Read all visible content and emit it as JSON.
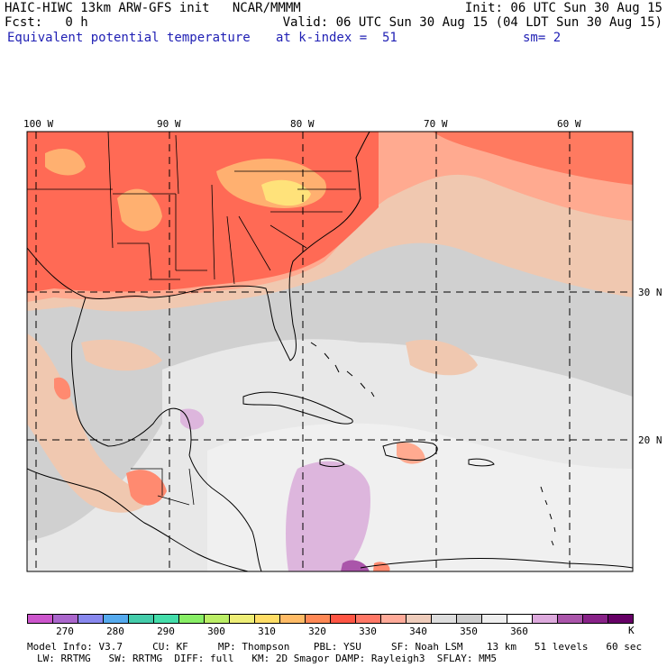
{
  "header": {
    "model_title": "HAIC-HIWC 13km ARW-GFS init   NCAR/MMMM",
    "init": "Init: 06 UTC Sun 30 Aug 15",
    "fcst": "Fcst:   0 h",
    "valid": "Valid: 06 UTC Sun 30 Aug 15 (04 LDT Sun 30 Aug 15)",
    "field_name": "Equivalent potential temperature",
    "level": "at k-index =  51",
    "smoothing": "sm= 2"
  },
  "map": {
    "lon_labels": [
      "100 W",
      "90 W",
      "80 W",
      "70 W",
      "60 W"
    ],
    "lat_labels": [
      "30 N",
      "20 N"
    ]
  },
  "colorbar": {
    "colors": [
      "#cc55cc",
      "#aa66cc",
      "#8888ee",
      "#55aaee",
      "#44ccaa",
      "#44ddaa",
      "#88ee66",
      "#bbee66",
      "#eeee77",
      "#ffdd66",
      "#ffbb66",
      "#ff8855",
      "#ff5544",
      "#ff7766",
      "#ffaa99",
      "#eeccbb",
      "#dddddd",
      "#cccccc",
      "#eeeeee",
      "#ffffff",
      "#ddaadd",
      "#aa55aa",
      "#882288",
      "#660066"
    ],
    "labels": [
      "270",
      "280",
      "290",
      "300",
      "310",
      "320",
      "330",
      "340",
      "350",
      "360"
    ],
    "unit": "K"
  },
  "footer": {
    "line1": "Model Info: V3.7     CU: KF     MP: Thompson    PBL: YSU     SF: Noah LSM    13 km   51 levels   60 sec",
    "line2": "LW: RRTMG   SW: RRTMG  DIFF: full   KM: 2D Smagor DAMP: Rayleigh3  SFLAY: MM5"
  }
}
